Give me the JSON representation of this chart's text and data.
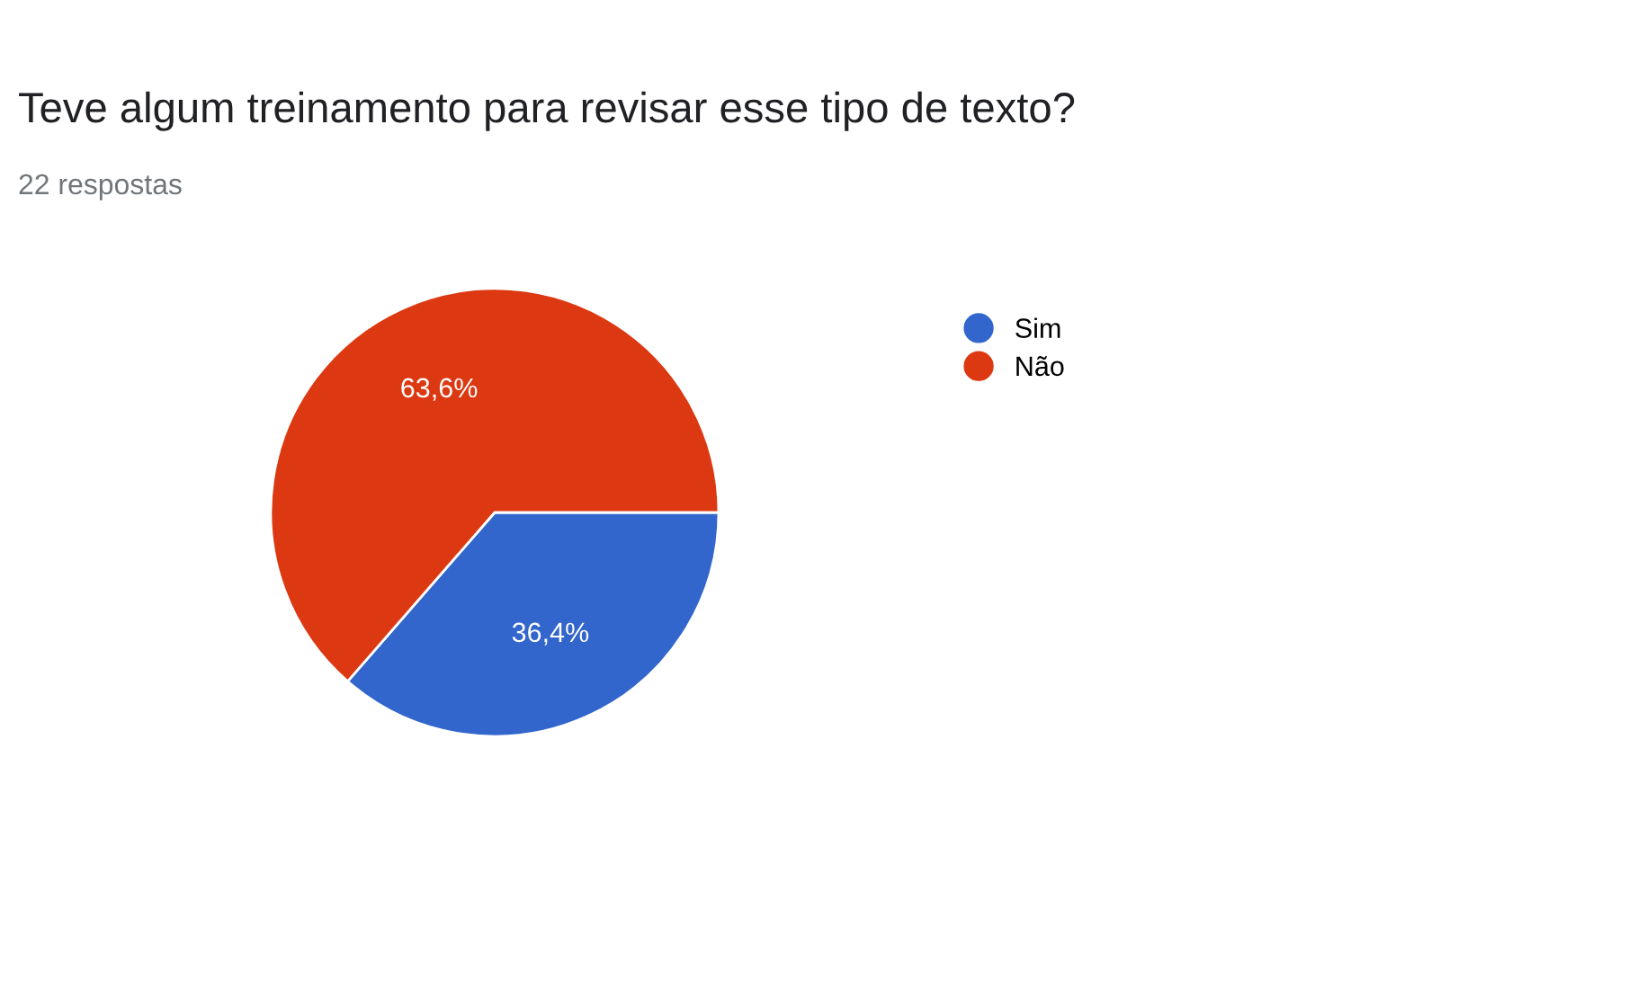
{
  "chart_data": {
    "type": "pie",
    "title": "Teve algum treinamento para revisar esse tipo de texto?",
    "subtitle": "22 respostas",
    "categories": [
      "Sim",
      "Não"
    ],
    "values": [
      36.4,
      63.6
    ],
    "colors": [
      "#3366cc",
      "#dc3912"
    ],
    "value_labels": [
      "36,4%",
      "63,6%"
    ],
    "legend": "top right"
  }
}
